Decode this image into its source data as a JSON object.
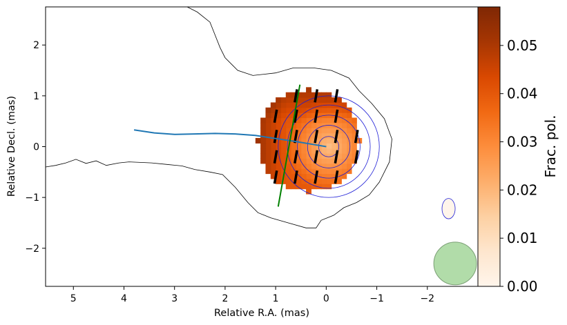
{
  "chart_data": {
    "type": "heatmap",
    "subtype": "polarization map (fractional polarization image with total-intensity contours, EVPA ticks, jet ridge line, beam)",
    "xlabel": "Relative R.A. (mas)",
    "ylabel": "Relative Decl. (mas)",
    "xlim": [
      5.55,
      -3.0
    ],
    "ylim": [
      -2.75,
      2.75
    ],
    "x_ticks": [
      5,
      4,
      3,
      2,
      1,
      0,
      -1,
      -2
    ],
    "x_tick_labels": [
      "5",
      "4",
      "3",
      "2",
      "1",
      "0",
      "−1",
      "−2"
    ],
    "y_ticks": [
      2,
      1,
      0,
      -1,
      -2
    ],
    "y_tick_labels": [
      "2",
      "1",
      "0",
      "−1",
      "−2"
    ],
    "grid": false,
    "x_axis_inverted": true,
    "colorbar": {
      "label": "Frac. pol.",
      "range": [
        0.0,
        0.058
      ],
      "ticks": [
        0.0,
        0.01,
        0.02,
        0.03,
        0.04,
        0.05
      ],
      "tick_labels": [
        "0.00",
        "0.01",
        "0.02",
        "0.03",
        "0.04",
        "0.05"
      ],
      "colormap": "Oranges",
      "colors": [
        "#fff5eb",
        "#fee6ce",
        "#fdd0a2",
        "#fdae6b",
        "#fd8d3c",
        "#f16913",
        "#d94801",
        "#a63603",
        "#7f2704"
      ]
    },
    "outer_contour": {
      "color": "#000000",
      "points": [
        [
          2.75,
          2.75
        ],
        [
          2.55,
          2.65
        ],
        [
          2.3,
          2.45
        ],
        [
          2.2,
          2.2
        ],
        [
          2.1,
          1.95
        ],
        [
          2.0,
          1.75
        ],
        [
          1.85,
          1.6
        ],
        [
          1.75,
          1.5
        ],
        [
          1.45,
          1.4
        ],
        [
          1.0,
          1.45
        ],
        [
          0.65,
          1.55
        ],
        [
          0.25,
          1.55
        ],
        [
          -0.1,
          1.5
        ],
        [
          -0.45,
          1.35
        ],
        [
          -0.65,
          1.1
        ],
        [
          -0.9,
          0.85
        ],
        [
          -1.15,
          0.55
        ],
        [
          -1.3,
          0.15
        ],
        [
          -1.25,
          -0.3
        ],
        [
          -1.05,
          -0.7
        ],
        [
          -0.85,
          -0.95
        ],
        [
          -0.6,
          -1.1
        ],
        [
          -0.35,
          -1.2
        ],
        [
          -0.15,
          -1.35
        ],
        [
          0.1,
          -1.45
        ],
        [
          0.2,
          -1.6
        ],
        [
          0.4,
          -1.6
        ],
        [
          0.75,
          -1.5
        ],
        [
          1.1,
          -1.4
        ],
        [
          1.35,
          -1.3
        ],
        [
          1.55,
          -1.1
        ],
        [
          1.8,
          -0.8
        ],
        [
          2.05,
          -0.55
        ],
        [
          2.3,
          -0.5
        ],
        [
          2.6,
          -0.45
        ],
        [
          2.85,
          -0.38
        ],
        [
          3.15,
          -0.35
        ],
        [
          3.45,
          -0.32
        ],
        [
          3.9,
          -0.3
        ],
        [
          4.1,
          -0.32
        ],
        [
          4.35,
          -0.37
        ],
        [
          4.55,
          -0.28
        ],
        [
          4.75,
          -0.33
        ],
        [
          4.95,
          -0.25
        ],
        [
          5.15,
          -0.32
        ],
        [
          5.35,
          -0.37
        ],
        [
          5.55,
          -0.4
        ]
      ]
    },
    "inner_contours": {
      "color": "#1c1cd6",
      "center": [
        -0.05,
        0.0
      ],
      "radii": [
        1.0,
        0.82,
        0.62,
        0.42,
        0.2
      ]
    },
    "polarized_region": {
      "center": [
        0.35,
        0.12
      ],
      "radius": 1.0
    },
    "evpa_ticks": {
      "color": "#000000",
      "length_mas": 0.26,
      "rows_y": [
        1.0,
        0.6,
        0.2,
        -0.2,
        -0.6,
        -1.0
      ],
      "columns_x": [
        1.0,
        0.6,
        0.2,
        -0.2,
        -0.6
      ],
      "angle_deg_from_north": 10
    },
    "jet_ridge_line": {
      "color": "#1f77b4",
      "points": [
        [
          3.8,
          0.33
        ],
        [
          3.4,
          0.27
        ],
        [
          3.0,
          0.24
        ],
        [
          2.6,
          0.25
        ],
        [
          2.2,
          0.26
        ],
        [
          1.8,
          0.25
        ],
        [
          1.4,
          0.22
        ],
        [
          1.0,
          0.16
        ],
        [
          0.6,
          0.1
        ],
        [
          0.3,
          0.05
        ],
        [
          0.0,
          0.0
        ]
      ]
    },
    "transverse_cut": {
      "color": "#008000",
      "start": [
        0.95,
        -1.18
      ],
      "end": [
        0.52,
        1.22
      ]
    },
    "secondary_contour": {
      "color": "#1c1cd6",
      "center": [
        -2.42,
        -1.22
      ],
      "rx": 0.13,
      "ry": 0.2
    },
    "beam": {
      "center": [
        -2.55,
        -2.3
      ],
      "radius": 0.42,
      "color": "#a8d8a0"
    }
  }
}
